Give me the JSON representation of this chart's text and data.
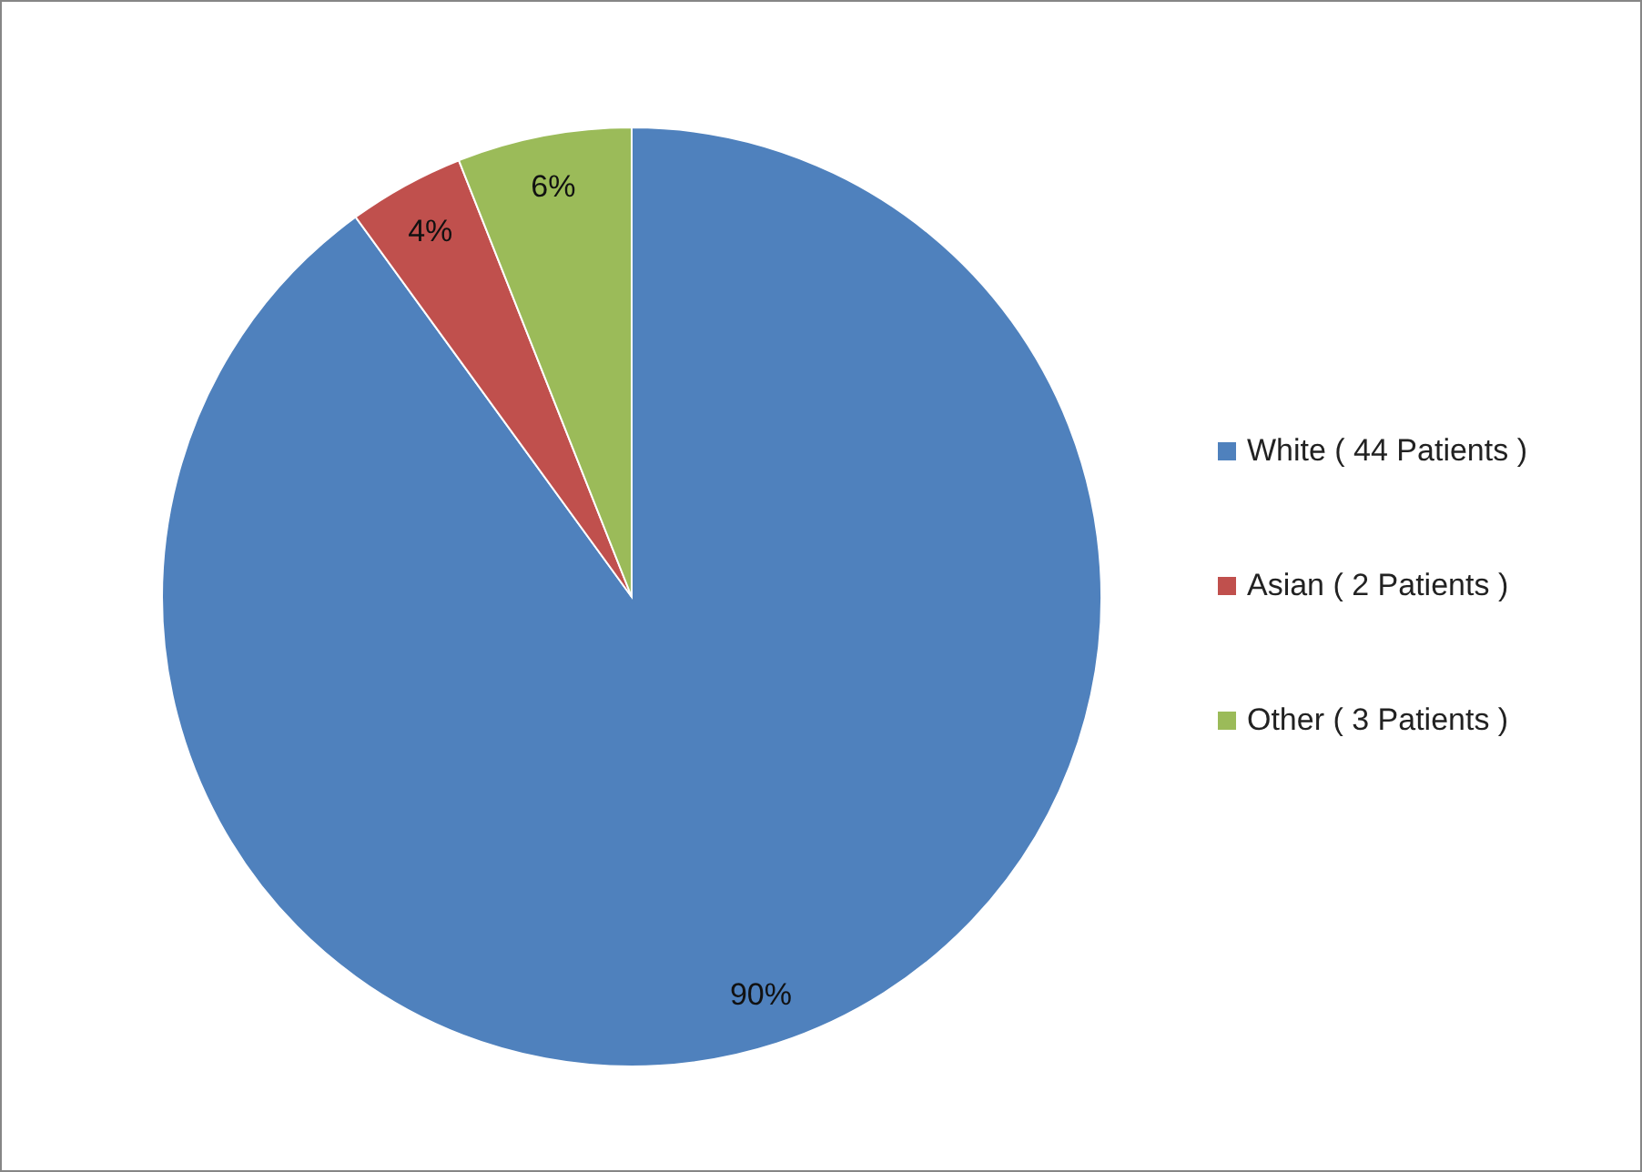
{
  "chart_data": {
    "type": "pie",
    "categories": [
      "White ( 44 Patients )",
      "Asian ( 2 Patients )",
      "Other ( 3 Patients )"
    ],
    "values": [
      90,
      4,
      6
    ],
    "colors": [
      "#4f81bd",
      "#c0504d",
      "#9bbb59"
    ],
    "value_labels": [
      "90%",
      "4%",
      "6%"
    ],
    "legend": "right"
  }
}
